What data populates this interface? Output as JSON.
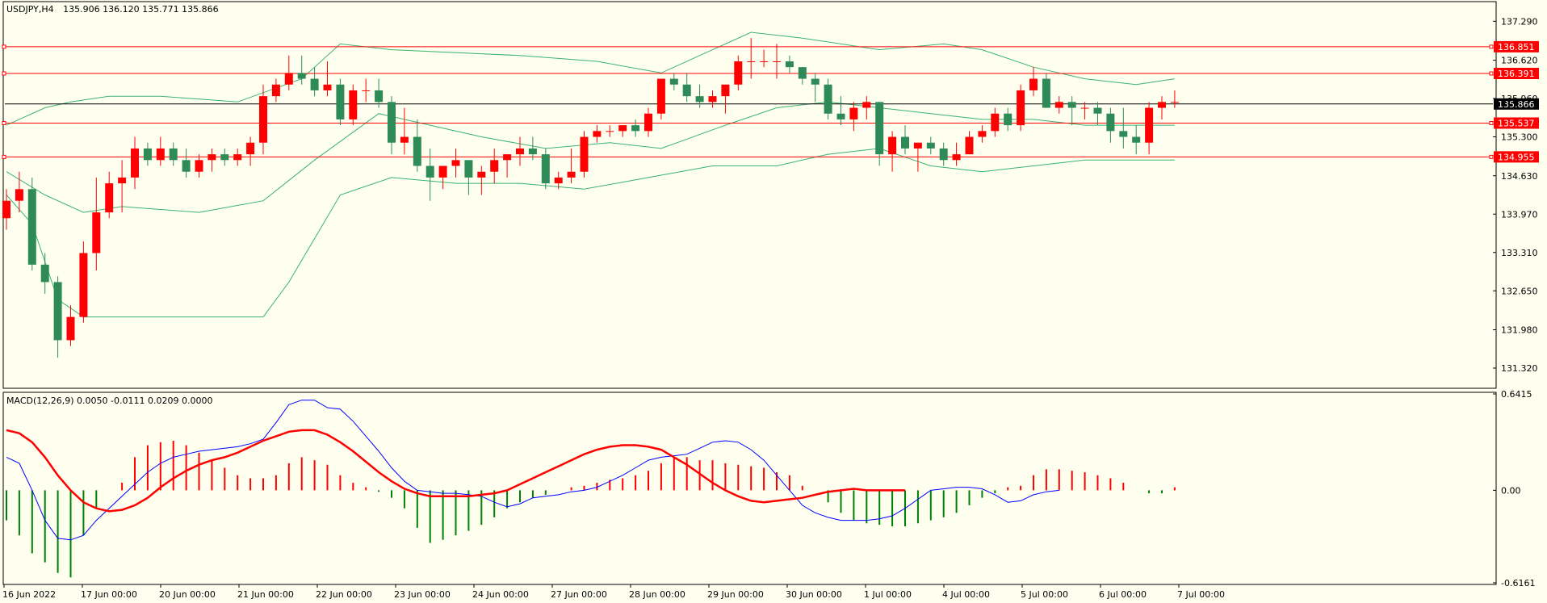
{
  "chart_data": [
    {
      "type": "candlestick",
      "symbol": "USDJPY,H4",
      "ohlc_header": "135.906 136.120 135.771 135.866",
      "ylim": [
        131.0,
        137.6
      ],
      "y_ticks": [
        "137.290",
        "136.620",
        "135.960",
        "135.300",
        "134.630",
        "133.970",
        "133.310",
        "132.650",
        "131.980",
        "131.320"
      ],
      "price_levels": [
        {
          "value": 136.851,
          "label": "136.851",
          "color": "#ff0000"
        },
        {
          "value": 136.391,
          "label": "136.391",
          "color": "#ff0000"
        },
        {
          "value": 135.537,
          "label": "135.537",
          "color": "#ff0000"
        },
        {
          "value": 134.955,
          "label": "134.955",
          "color": "#ff0000"
        }
      ],
      "current_price": {
        "value": 135.866,
        "label": "135.866",
        "color": "#000000"
      },
      "colors": {
        "up": "#ff0000",
        "down": "#2e8b57",
        "bands": "#3cb371",
        "grid": "#000000"
      },
      "x_labels": [
        "16 Jun 2022",
        "17 Jun 00:00",
        "20 Jun 00:00",
        "21 Jun 00:00",
        "22 Jun 00:00",
        "23 Jun 00:00",
        "24 Jun 00:00",
        "27 Jun 00:00",
        "28 Jun 00:00",
        "29 Jun 00:00",
        "30 Jun 00:00",
        "1 Jul 00:00",
        "4 Jul 00:00",
        "5 Jul 00:00",
        "6 Jul 00:00",
        "7 Jul 00:00"
      ],
      "candles": [
        {
          "o": 133.9,
          "h": 134.4,
          "l": 133.7,
          "c": 134.2
        },
        {
          "o": 134.2,
          "h": 134.7,
          "l": 134.0,
          "c": 134.4
        },
        {
          "o": 134.4,
          "h": 134.6,
          "l": 133.0,
          "c": 133.1
        },
        {
          "o": 133.1,
          "h": 133.3,
          "l": 132.6,
          "c": 132.8
        },
        {
          "o": 132.8,
          "h": 132.9,
          "l": 131.5,
          "c": 131.8
        },
        {
          "o": 131.8,
          "h": 132.4,
          "l": 131.7,
          "c": 132.2
        },
        {
          "o": 132.2,
          "h": 133.5,
          "l": 132.1,
          "c": 133.3
        },
        {
          "o": 133.3,
          "h": 134.6,
          "l": 133.0,
          "c": 134.0
        },
        {
          "o": 134.0,
          "h": 134.7,
          "l": 133.9,
          "c": 134.5
        },
        {
          "o": 134.5,
          "h": 134.9,
          "l": 134.0,
          "c": 134.6
        },
        {
          "o": 134.6,
          "h": 135.3,
          "l": 134.4,
          "c": 135.1
        },
        {
          "o": 135.1,
          "h": 135.2,
          "l": 134.8,
          "c": 134.9
        },
        {
          "o": 134.9,
          "h": 135.3,
          "l": 134.8,
          "c": 135.1
        },
        {
          "o": 135.1,
          "h": 135.2,
          "l": 134.8,
          "c": 134.9
        },
        {
          "o": 134.9,
          "h": 135.1,
          "l": 134.6,
          "c": 134.7
        },
        {
          "o": 134.7,
          "h": 135.0,
          "l": 134.6,
          "c": 134.9
        },
        {
          "o": 134.9,
          "h": 135.1,
          "l": 134.7,
          "c": 135.0
        },
        {
          "o": 135.0,
          "h": 135.1,
          "l": 134.8,
          "c": 134.9
        },
        {
          "o": 134.9,
          "h": 135.1,
          "l": 134.8,
          "c": 135.0
        },
        {
          "o": 135.0,
          "h": 135.3,
          "l": 134.8,
          "c": 135.2
        },
        {
          "o": 135.2,
          "h": 136.2,
          "l": 135.0,
          "c": 136.0
        },
        {
          "o": 136.0,
          "h": 136.3,
          "l": 135.9,
          "c": 136.2
        },
        {
          "o": 136.2,
          "h": 136.7,
          "l": 136.1,
          "c": 136.4
        },
        {
          "o": 136.4,
          "h": 136.7,
          "l": 136.2,
          "c": 136.3
        },
        {
          "o": 136.3,
          "h": 136.5,
          "l": 136.0,
          "c": 136.1
        },
        {
          "o": 136.1,
          "h": 136.6,
          "l": 136.0,
          "c": 136.2
        },
        {
          "o": 136.2,
          "h": 136.3,
          "l": 135.5,
          "c": 135.6
        },
        {
          "o": 135.6,
          "h": 136.2,
          "l": 135.5,
          "c": 136.1
        },
        {
          "o": 136.1,
          "h": 136.3,
          "l": 135.9,
          "c": 136.1
        },
        {
          "o": 136.1,
          "h": 136.3,
          "l": 135.8,
          "c": 135.9
        },
        {
          "o": 135.9,
          "h": 136.0,
          "l": 135.0,
          "c": 135.2
        },
        {
          "o": 135.2,
          "h": 135.8,
          "l": 135.0,
          "c": 135.3
        },
        {
          "o": 135.3,
          "h": 135.6,
          "l": 134.7,
          "c": 134.8
        },
        {
          "o": 134.8,
          "h": 135.1,
          "l": 134.2,
          "c": 134.6
        },
        {
          "o": 134.6,
          "h": 134.8,
          "l": 134.4,
          "c": 134.8
        },
        {
          "o": 134.8,
          "h": 135.1,
          "l": 134.6,
          "c": 134.9
        },
        {
          "o": 134.9,
          "h": 134.9,
          "l": 134.3,
          "c": 134.6
        },
        {
          "o": 134.6,
          "h": 134.8,
          "l": 134.3,
          "c": 134.7
        },
        {
          "o": 134.7,
          "h": 135.1,
          "l": 134.5,
          "c": 134.9
        },
        {
          "o": 134.9,
          "h": 135.0,
          "l": 134.6,
          "c": 135.0
        },
        {
          "o": 135.0,
          "h": 135.3,
          "l": 134.8,
          "c": 135.1
        },
        {
          "o": 135.1,
          "h": 135.3,
          "l": 134.9,
          "c": 135.0
        },
        {
          "o": 135.0,
          "h": 135.1,
          "l": 134.4,
          "c": 134.5
        },
        {
          "o": 134.5,
          "h": 134.7,
          "l": 134.4,
          "c": 134.6
        },
        {
          "o": 134.6,
          "h": 135.1,
          "l": 134.5,
          "c": 134.7
        },
        {
          "o": 134.7,
          "h": 135.4,
          "l": 134.6,
          "c": 135.3
        },
        {
          "o": 135.3,
          "h": 135.5,
          "l": 135.2,
          "c": 135.4
        },
        {
          "o": 135.4,
          "h": 135.5,
          "l": 135.3,
          "c": 135.4
        },
        {
          "o": 135.4,
          "h": 135.5,
          "l": 135.3,
          "c": 135.5
        },
        {
          "o": 135.5,
          "h": 135.6,
          "l": 135.3,
          "c": 135.4
        },
        {
          "o": 135.4,
          "h": 135.8,
          "l": 135.3,
          "c": 135.7
        },
        {
          "o": 135.7,
          "h": 136.3,
          "l": 135.6,
          "c": 136.3
        },
        {
          "o": 136.3,
          "h": 136.4,
          "l": 136.1,
          "c": 136.2
        },
        {
          "o": 136.2,
          "h": 136.4,
          "l": 135.9,
          "c": 136.0
        },
        {
          "o": 136.0,
          "h": 136.2,
          "l": 135.8,
          "c": 135.9
        },
        {
          "o": 135.9,
          "h": 136.1,
          "l": 135.8,
          "c": 136.0
        },
        {
          "o": 136.0,
          "h": 136.2,
          "l": 135.7,
          "c": 136.2
        },
        {
          "o": 136.2,
          "h": 136.7,
          "l": 136.1,
          "c": 136.6
        },
        {
          "o": 136.6,
          "h": 137.0,
          "l": 136.3,
          "c": 136.6
        },
        {
          "o": 136.6,
          "h": 136.8,
          "l": 136.5,
          "c": 136.6
        },
        {
          "o": 136.6,
          "h": 136.9,
          "l": 136.3,
          "c": 136.6
        },
        {
          "o": 136.6,
          "h": 136.7,
          "l": 136.4,
          "c": 136.5
        },
        {
          "o": 136.5,
          "h": 136.5,
          "l": 136.2,
          "c": 136.3
        },
        {
          "o": 136.3,
          "h": 136.4,
          "l": 135.9,
          "c": 136.2
        },
        {
          "o": 136.2,
          "h": 136.3,
          "l": 135.6,
          "c": 135.7
        },
        {
          "o": 135.7,
          "h": 136.0,
          "l": 135.5,
          "c": 135.6
        },
        {
          "o": 135.6,
          "h": 135.9,
          "l": 135.4,
          "c": 135.8
        },
        {
          "o": 135.8,
          "h": 136.0,
          "l": 135.6,
          "c": 135.9
        },
        {
          "o": 135.9,
          "h": 135.9,
          "l": 134.8,
          "c": 135.0
        },
        {
          "o": 135.0,
          "h": 135.4,
          "l": 134.7,
          "c": 135.3
        },
        {
          "o": 135.3,
          "h": 135.5,
          "l": 135.0,
          "c": 135.1
        },
        {
          "o": 135.1,
          "h": 135.2,
          "l": 134.7,
          "c": 135.2
        },
        {
          "o": 135.2,
          "h": 135.3,
          "l": 135.0,
          "c": 135.1
        },
        {
          "o": 135.1,
          "h": 135.2,
          "l": 134.8,
          "c": 134.9
        },
        {
          "o": 134.9,
          "h": 135.2,
          "l": 134.8,
          "c": 135.0
        },
        {
          "o": 135.0,
          "h": 135.4,
          "l": 135.0,
          "c": 135.3
        },
        {
          "o": 135.3,
          "h": 135.5,
          "l": 135.2,
          "c": 135.4
        },
        {
          "o": 135.4,
          "h": 135.8,
          "l": 135.3,
          "c": 135.7
        },
        {
          "o": 135.7,
          "h": 135.8,
          "l": 135.4,
          "c": 135.5
        },
        {
          "o": 135.5,
          "h": 136.2,
          "l": 135.4,
          "c": 136.1
        },
        {
          "o": 136.1,
          "h": 136.5,
          "l": 136.0,
          "c": 136.3
        },
        {
          "o": 136.3,
          "h": 136.4,
          "l": 135.8,
          "c": 135.8
        },
        {
          "o": 135.8,
          "h": 136.0,
          "l": 135.7,
          "c": 135.9
        },
        {
          "o": 135.9,
          "h": 136.0,
          "l": 135.5,
          "c": 135.8
        },
        {
          "o": 135.8,
          "h": 135.9,
          "l": 135.6,
          "c": 135.8
        },
        {
          "o": 135.8,
          "h": 135.9,
          "l": 135.5,
          "c": 135.7
        },
        {
          "o": 135.7,
          "h": 135.8,
          "l": 135.2,
          "c": 135.4
        },
        {
          "o": 135.4,
          "h": 135.8,
          "l": 135.1,
          "c": 135.3
        },
        {
          "o": 135.3,
          "h": 135.5,
          "l": 135.0,
          "c": 135.2
        },
        {
          "o": 135.2,
          "h": 135.9,
          "l": 135.0,
          "c": 135.8
        },
        {
          "o": 135.8,
          "h": 136.0,
          "l": 135.6,
          "c": 135.9
        },
        {
          "o": 135.9,
          "h": 136.1,
          "l": 135.8,
          "c": 135.9
        }
      ],
      "bollinger": {
        "upper": [
          [
            0,
            135.5
          ],
          [
            3,
            135.8
          ],
          [
            5,
            135.9
          ],
          [
            8,
            136.0
          ],
          [
            12,
            136.0
          ],
          [
            18,
            135.9
          ],
          [
            23,
            136.3
          ],
          [
            26,
            136.9
          ],
          [
            30,
            136.8
          ],
          [
            40,
            136.7
          ],
          [
            46,
            136.6
          ],
          [
            51,
            136.4
          ],
          [
            55,
            136.8
          ],
          [
            58,
            137.1
          ],
          [
            62,
            137.0
          ],
          [
            68,
            136.8
          ],
          [
            73,
            136.9
          ],
          [
            76,
            136.8
          ],
          [
            80,
            136.5
          ],
          [
            84,
            136.3
          ],
          [
            88,
            136.2
          ],
          [
            91,
            136.3
          ]
        ],
        "mid": [
          [
            0,
            134.7
          ],
          [
            3,
            134.3
          ],
          [
            6,
            134.0
          ],
          [
            9,
            134.1
          ],
          [
            15,
            134.0
          ],
          [
            20,
            134.2
          ],
          [
            24,
            134.9
          ],
          [
            29,
            135.7
          ],
          [
            33,
            135.5
          ],
          [
            37,
            135.3
          ],
          [
            42,
            135.1
          ],
          [
            47,
            135.2
          ],
          [
            51,
            135.1
          ],
          [
            56,
            135.5
          ],
          [
            60,
            135.8
          ],
          [
            64,
            135.9
          ],
          [
            68,
            135.8
          ],
          [
            72,
            135.7
          ],
          [
            76,
            135.6
          ],
          [
            80,
            135.6
          ],
          [
            84,
            135.5
          ],
          [
            88,
            135.5
          ],
          [
            91,
            135.5
          ]
        ],
        "lower": [
          [
            0,
            134.3
          ],
          [
            2,
            133.8
          ],
          [
            4,
            132.5
          ],
          [
            6,
            132.2
          ],
          [
            15,
            132.2
          ],
          [
            20,
            132.2
          ],
          [
            22,
            132.8
          ],
          [
            26,
            134.3
          ],
          [
            30,
            134.6
          ],
          [
            35,
            134.5
          ],
          [
            40,
            134.5
          ],
          [
            45,
            134.4
          ],
          [
            50,
            134.6
          ],
          [
            55,
            134.8
          ],
          [
            60,
            134.8
          ],
          [
            64,
            135.0
          ],
          [
            68,
            135.1
          ],
          [
            72,
            134.8
          ],
          [
            76,
            134.7
          ],
          [
            80,
            134.8
          ],
          [
            84,
            134.9
          ],
          [
            88,
            134.9
          ],
          [
            91,
            134.9
          ]
        ]
      }
    },
    {
      "type": "macd",
      "label": "MACD(12,26,9) 0.0050 -0.0111 0.0209 0.0000",
      "ylim": [
        -0.6161,
        0.6415
      ],
      "y_ticks": [
        "0.6415",
        "0.00",
        "-0.6161"
      ],
      "colors": {
        "macd_line": "#0000ff",
        "signal_line": "#ff0000",
        "hist_up": "#ff0000",
        "hist_down": "#008000"
      },
      "histogram": [
        -0.2,
        -0.3,
        -0.42,
        -0.48,
        -0.55,
        -0.58,
        -0.3,
        -0.12,
        0.0,
        0.05,
        0.22,
        0.3,
        0.32,
        0.33,
        0.3,
        0.25,
        0.2,
        0.15,
        0.1,
        0.08,
        0.08,
        0.1,
        0.18,
        0.22,
        0.2,
        0.17,
        0.1,
        0.05,
        0.02,
        -0.01,
        -0.05,
        -0.12,
        -0.25,
        -0.35,
        -0.33,
        -0.3,
        -0.27,
        -0.23,
        -0.18,
        -0.12,
        -0.08,
        -0.05,
        -0.03,
        0.0,
        0.02,
        0.03,
        0.05,
        0.07,
        0.08,
        0.1,
        0.13,
        0.18,
        0.22,
        0.22,
        0.2,
        0.2,
        0.18,
        0.17,
        0.16,
        0.15,
        0.12,
        0.1,
        0.03,
        0.0,
        -0.08,
        -0.15,
        -0.2,
        -0.22,
        -0.23,
        -0.24,
        -0.24,
        -0.22,
        -0.2,
        -0.18,
        -0.15,
        -0.1,
        -0.05,
        -0.02,
        0.02,
        0.03,
        0.1,
        0.14,
        0.14,
        0.13,
        0.12,
        0.1,
        0.08,
        0.05,
        0.0,
        -0.02,
        -0.02,
        0.02
      ],
      "macd_line": [
        0.22,
        0.18,
        0.0,
        -0.2,
        -0.32,
        -0.33,
        -0.3,
        -0.2,
        -0.12,
        -0.04,
        0.04,
        0.12,
        0.18,
        0.22,
        0.24,
        0.26,
        0.27,
        0.28,
        0.29,
        0.31,
        0.34,
        0.45,
        0.57,
        0.6,
        0.6,
        0.55,
        0.54,
        0.46,
        0.36,
        0.26,
        0.15,
        0.06,
        0.0,
        -0.01,
        -0.02,
        -0.02,
        -0.03,
        -0.04,
        -0.08,
        -0.11,
        -0.09,
        -0.05,
        -0.04,
        -0.03,
        -0.01,
        0.0,
        0.02,
        0.06,
        0.1,
        0.15,
        0.2,
        0.22,
        0.23,
        0.24,
        0.28,
        0.32,
        0.33,
        0.32,
        0.27,
        0.2,
        0.1,
        0.0,
        -0.1,
        -0.15,
        -0.18,
        -0.2,
        -0.2,
        -0.2,
        -0.19,
        -0.17,
        -0.12,
        -0.06,
        0.0,
        0.01,
        0.02,
        0.02,
        0.01,
        -0.03,
        -0.08,
        -0.07,
        -0.03,
        -0.01,
        0.0
      ],
      "signal_line": [
        0.4,
        0.38,
        0.32,
        0.22,
        0.1,
        0.0,
        -0.08,
        -0.12,
        -0.14,
        -0.13,
        -0.1,
        -0.05,
        0.02,
        0.08,
        0.13,
        0.17,
        0.2,
        0.22,
        0.25,
        0.29,
        0.33,
        0.36,
        0.39,
        0.4,
        0.4,
        0.37,
        0.32,
        0.26,
        0.19,
        0.12,
        0.06,
        0.01,
        -0.02,
        -0.04,
        -0.04,
        -0.04,
        -0.04,
        -0.03,
        -0.02,
        0.0,
        0.04,
        0.08,
        0.12,
        0.16,
        0.2,
        0.24,
        0.27,
        0.29,
        0.3,
        0.3,
        0.29,
        0.27,
        0.22,
        0.17,
        0.11,
        0.05,
        0.0,
        -0.04,
        -0.07,
        -0.08,
        -0.07,
        -0.06,
        -0.05,
        -0.03,
        -0.01,
        0.0,
        0.01,
        0.0,
        0.0,
        0.0,
        0.0
      ]
    }
  ]
}
